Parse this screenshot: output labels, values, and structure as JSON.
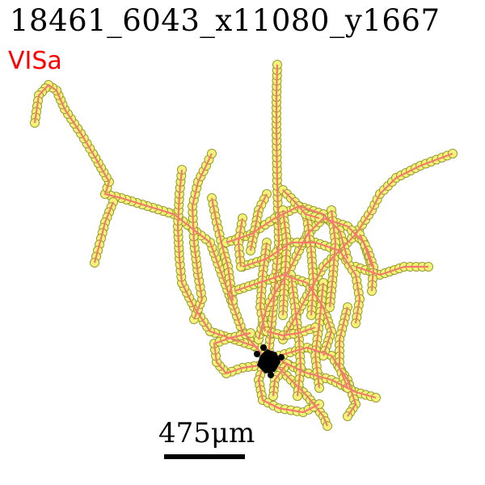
{
  "title": "18461_6043_x11080_y1667",
  "region_label": "VISa",
  "scale_bar": {
    "label": "475μm"
  },
  "colors": {
    "title": "#000000",
    "region": "#ff0000",
    "edge": "#f47a6e",
    "node_fill": "#f3f37a",
    "node_stroke": "#9a9a30",
    "soma": "#000000",
    "scale_bar": "#000000"
  },
  "morphology": {
    "nodes": "yellow-circles",
    "edges": "salmon-lines",
    "soma": "black-blob"
  }
}
